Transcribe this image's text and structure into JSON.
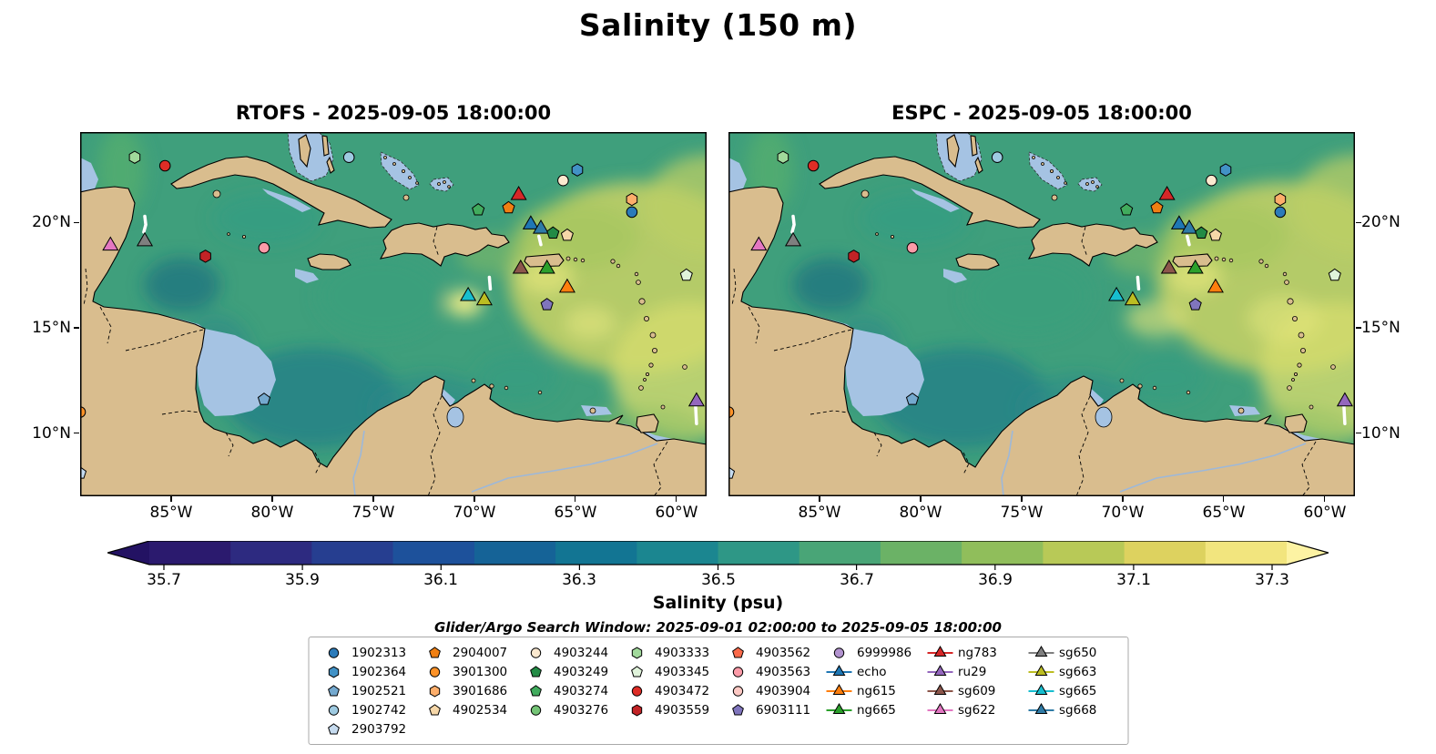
{
  "chart_data": {
    "type": "heatmap",
    "title": "Salinity (150 m)",
    "panels": [
      {
        "title": "RTOFS - 2025-09-05 18:00:00"
      },
      {
        "title": "ESPC - 2025-09-05 18:00:00"
      }
    ],
    "map_extent": {
      "lon_min": -89.5,
      "lon_max": -58.5,
      "lat_min": 7.0,
      "lat_max": 24.3
    },
    "x_ticks": {
      "values": [
        -85,
        -80,
        -75,
        -70,
        -65,
        -60
      ],
      "labels": [
        "85°W",
        "80°W",
        "75°W",
        "70°W",
        "65°W",
        "60°W"
      ]
    },
    "y_ticks": {
      "values": [
        20,
        15,
        10
      ],
      "labels": [
        "20°N",
        "15°N",
        "10°N"
      ]
    },
    "colorbar": {
      "label": "Salinity (psu)",
      "tick_labels": [
        "35.7",
        "35.9",
        "36.1",
        "36.3",
        "36.5",
        "36.7",
        "36.9",
        "37.1",
        "37.3"
      ],
      "vmin": 35.7,
      "vmax": 37.3,
      "under_color": "#231263",
      "over_color": "#fdf3a3",
      "colors": [
        "#2b1a6e",
        "#2d2a80",
        "#263e90",
        "#1d519b",
        "#156397",
        "#127593",
        "#1b8690",
        "#2e9786",
        "#49a577",
        "#6bb266",
        "#90be5b",
        "#b8c957",
        "#ddd25f",
        "#f2e57e"
      ]
    },
    "search_window": "Glider/Argo Search Window: 2025-09-01 02:00:00 to 2025-09-05 18:00:00",
    "platforms": {
      "1902313": {
        "marker": "circle",
        "color": "#2b7bba",
        "kind": "argo"
      },
      "1902364": {
        "marker": "hexagon",
        "color": "#4292c6",
        "kind": "argo"
      },
      "1902521": {
        "marker": "pentagon",
        "color": "#74a9cf",
        "kind": "argo"
      },
      "1902742": {
        "marker": "circle",
        "color": "#9ecae1",
        "kind": "argo"
      },
      "2903792": {
        "marker": "pentagon",
        "color": "#c6dbef",
        "kind": "argo"
      },
      "2904007": {
        "marker": "pentagon",
        "color": "#f07f12",
        "kind": "argo"
      },
      "3901300": {
        "marker": "circle",
        "color": "#fd9227",
        "kind": "argo"
      },
      "3901686": {
        "marker": "hexagon",
        "color": "#fdae6b",
        "kind": "argo"
      },
      "4902534": {
        "marker": "pentagon",
        "color": "#f6d7a8",
        "kind": "argo"
      },
      "4903244": {
        "marker": "circle",
        "color": "#fbe9cf",
        "kind": "argo"
      },
      "4903249": {
        "marker": "pentagon",
        "color": "#238b45",
        "kind": "argo"
      },
      "4903274": {
        "marker": "pentagon",
        "color": "#41ab5d",
        "kind": "argo"
      },
      "4903276": {
        "marker": "circle",
        "color": "#74c476",
        "kind": "argo"
      },
      "4903333": {
        "marker": "hexagon",
        "color": "#a1d99b",
        "kind": "argo"
      },
      "4903345": {
        "marker": "pentagon",
        "color": "#e0f3db",
        "kind": "argo"
      },
      "4903472": {
        "marker": "circle",
        "color": "#de2d26",
        "kind": "argo"
      },
      "4903559": {
        "marker": "hexagon",
        "color": "#c22326",
        "kind": "argo"
      },
      "4903562": {
        "marker": "pentagon",
        "color": "#fb6a4a",
        "kind": "argo"
      },
      "4903563": {
        "marker": "circle",
        "color": "#fc9ba8",
        "kind": "argo"
      },
      "4903904": {
        "marker": "circle",
        "color": "#fcc8c3",
        "kind": "argo"
      },
      "6903111": {
        "marker": "pentagon",
        "color": "#8075bd",
        "kind": "argo"
      },
      "6999986": {
        "marker": "circle",
        "color": "#b293cf",
        "kind": "argo"
      },
      "echo": {
        "marker": "triangle",
        "color": "#1f77b4",
        "kind": "glider"
      },
      "ng615": {
        "marker": "triangle",
        "color": "#ff7f0e",
        "kind": "glider"
      },
      "ng665": {
        "marker": "triangle",
        "color": "#2ca02c",
        "kind": "glider"
      },
      "ng783": {
        "marker": "triangle",
        "color": "#d62728",
        "kind": "glider"
      },
      "ru29": {
        "marker": "triangle",
        "color": "#9467bd",
        "kind": "glider"
      },
      "sg609": {
        "marker": "triangle",
        "color": "#8c564b",
        "kind": "glider"
      },
      "sg622": {
        "marker": "triangle",
        "color": "#e377c2",
        "kind": "glider"
      },
      "sg650": {
        "marker": "triangle",
        "color": "#7f7f7f",
        "kind": "glider"
      },
      "sg663": {
        "marker": "triangle",
        "color": "#bcbd22",
        "kind": "glider"
      },
      "sg665": {
        "marker": "triangle",
        "color": "#17becf",
        "kind": "glider"
      },
      "sg668": {
        "marker": "triangle",
        "color": "#2f7ba6",
        "kind": "glider"
      }
    },
    "legend_columns": [
      [
        "1902313",
        "1902364",
        "1902521",
        "1902742",
        "2903792"
      ],
      [
        "2904007",
        "3901300",
        "3901686",
        "4902534"
      ],
      [
        "4903244",
        "4903249",
        "4903274",
        "4903276"
      ],
      [
        "4903333",
        "4903345",
        "4903472",
        "4903559"
      ],
      [
        "4903562",
        "4903563",
        "4903904",
        "6903111"
      ],
      [
        "6999986",
        "echo",
        "ng615",
        "ng665"
      ],
      [
        "ng783",
        "ru29",
        "sg609",
        "sg622"
      ],
      [
        "sg650",
        "sg663",
        "sg665",
        "sg668"
      ]
    ],
    "map_markers": [
      {
        "id": "4903333",
        "lon": -86.8,
        "lat": 23.1
      },
      {
        "id": "4903472",
        "lon": -85.3,
        "lat": 22.7
      },
      {
        "id": "1902742",
        "lon": -76.2,
        "lat": 23.1
      },
      {
        "id": "1902364",
        "lon": -64.9,
        "lat": 22.5
      },
      {
        "id": "4903244",
        "lon": -65.6,
        "lat": 22.0
      },
      {
        "id": "ng783",
        "lon": -67.8,
        "lat": 21.3
      },
      {
        "id": "3901686",
        "lon": -62.2,
        "lat": 21.1
      },
      {
        "id": "2904007",
        "lon": -68.3,
        "lat": 20.7
      },
      {
        "id": "4903274",
        "lon": -69.8,
        "lat": 20.6
      },
      {
        "id": "1902313",
        "lon": -62.2,
        "lat": 20.5
      },
      {
        "id": "echo",
        "lon": -67.2,
        "lat": 19.9
      },
      {
        "id": "sg668",
        "lon": -66.7,
        "lat": 19.7
      },
      {
        "id": "4903249",
        "lon": -66.1,
        "lat": 19.5
      },
      {
        "id": "4902534",
        "lon": -65.4,
        "lat": 19.4
      },
      {
        "id": "sg650",
        "lon": -86.3,
        "lat": 19.1
      },
      {
        "id": "sg622",
        "lon": -88.0,
        "lat": 18.9
      },
      {
        "id": "4903563",
        "lon": -80.4,
        "lat": 18.8
      },
      {
        "id": "4903559",
        "lon": -83.3,
        "lat": 18.4
      },
      {
        "id": "sg609",
        "lon": -67.7,
        "lat": 17.8
      },
      {
        "id": "ng665",
        "lon": -66.4,
        "lat": 17.8
      },
      {
        "id": "4903345",
        "lon": -59.5,
        "lat": 17.5
      },
      {
        "id": "ng615",
        "lon": -65.4,
        "lat": 16.9
      },
      {
        "id": "sg665",
        "lon": -70.3,
        "lat": 16.5
      },
      {
        "id": "sg663",
        "lon": -69.5,
        "lat": 16.3
      },
      {
        "id": "6903111",
        "lon": -66.4,
        "lat": 16.1
      },
      {
        "id": "1902521",
        "lon": -80.4,
        "lat": 11.6
      },
      {
        "id": "ru29",
        "lon": -59.0,
        "lat": 11.5
      },
      {
        "id": "3901300",
        "lon": -89.5,
        "lat": 11.0
      },
      {
        "id": "2903792",
        "lon": -89.5,
        "lat": 8.1
      }
    ],
    "tracks": [
      {
        "points": [
          [
            -86.3,
            20.3
          ],
          [
            -86.25,
            19.9
          ],
          [
            -86.35,
            19.55
          ]
        ]
      },
      {
        "points": [
          [
            -66.8,
            19.35
          ],
          [
            -66.7,
            18.95
          ]
        ]
      },
      {
        "points": [
          [
            -69.25,
            17.4
          ],
          [
            -69.2,
            16.85
          ]
        ]
      },
      {
        "points": [
          [
            -59.05,
            11.35
          ],
          [
            -59.0,
            10.45
          ]
        ]
      }
    ]
  }
}
